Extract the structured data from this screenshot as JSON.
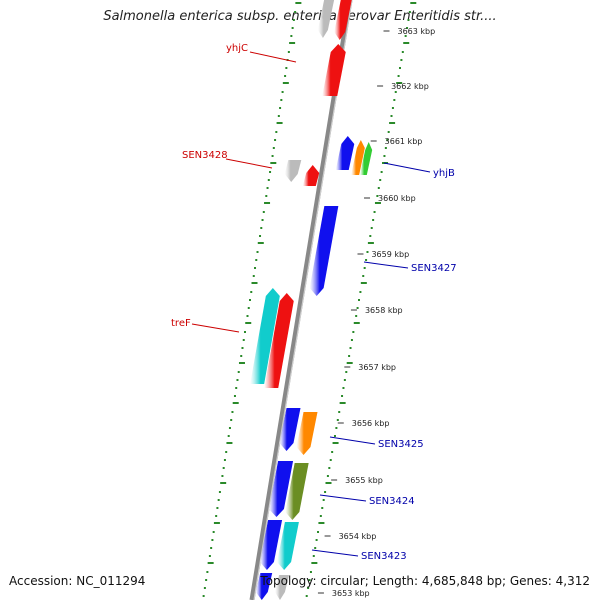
{
  "title": "Salmonella enterica subsp. enterica serovar Enteritidis str....",
  "footer": {
    "accession": "Accession: NC_011294",
    "topology": "Topology: circular; Length: 4,685,848 bp; Genes: 4,312"
  },
  "colors": {
    "backbone": "#888888",
    "gc_dots": "#2a8a2a",
    "left_label": "#cc0000",
    "right_label": "#0000aa",
    "blue": "#1010ee",
    "red": "#ee1111",
    "cyan": "#11cccc",
    "gray": "#bbbbbb",
    "orange": "#ff8800",
    "green": "#33cc33",
    "olive": "#6b8e23"
  },
  "ticks": [
    {
      "label": "3663 kbp"
    },
    {
      "label": "3662 kbp"
    },
    {
      "label": "3661 kbp"
    },
    {
      "label": "3660 kbp"
    },
    {
      "label": "3659 kbp"
    },
    {
      "label": "3658 kbp"
    },
    {
      "label": "3657 kbp"
    },
    {
      "label": "3656 kbp"
    },
    {
      "label": "3655 kbp"
    },
    {
      "label": "3654 kbp"
    },
    {
      "label": "3653 kbp"
    }
  ],
  "gene_labels": [
    {
      "text": "yhjC",
      "side": "left"
    },
    {
      "text": "SEN3428",
      "side": "left"
    },
    {
      "text": "treF",
      "side": "left"
    },
    {
      "text": "yhjB",
      "side": "right"
    },
    {
      "text": "SEN3427",
      "side": "right"
    },
    {
      "text": "SEN3425",
      "side": "right"
    },
    {
      "text": "SEN3424",
      "side": "right"
    },
    {
      "text": "SEN3423",
      "side": "right"
    }
  ]
}
